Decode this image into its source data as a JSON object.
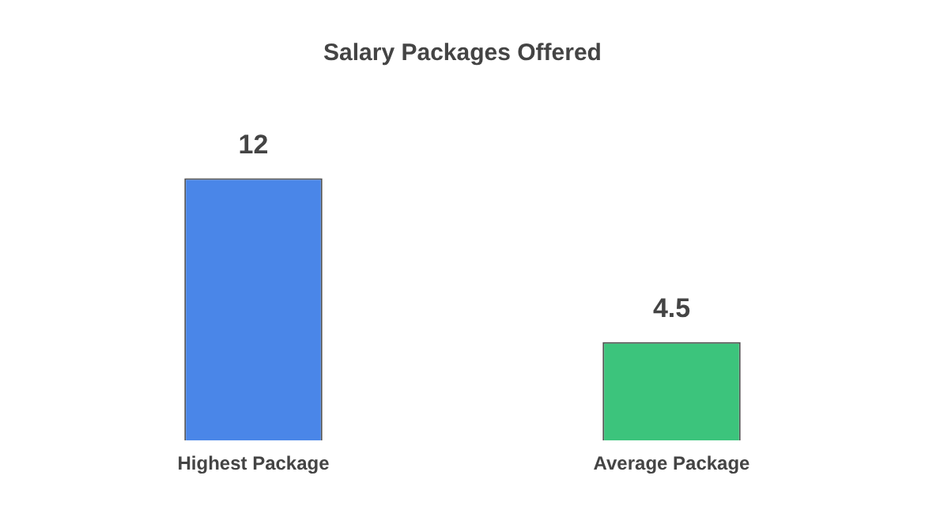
{
  "chart_data": {
    "type": "bar",
    "title": "Salary Packages Offered",
    "categories": [
      "Highest Package",
      "Average Package"
    ],
    "values": [
      12,
      4.5
    ],
    "colors": [
      "#4a86e8",
      "#3cc47c"
    ],
    "data_labels": true,
    "grid": false,
    "legend": false
  }
}
